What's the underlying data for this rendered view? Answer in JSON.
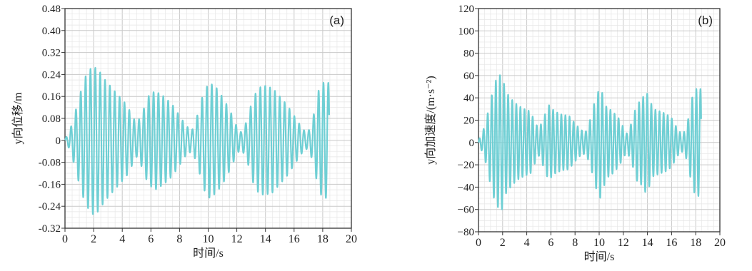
{
  "chart_data": [
    {
      "type": "line",
      "panel_label": "(a)",
      "xlabel": "时间/s",
      "ylabel": "y向位移/m",
      "xlim": [
        0,
        20
      ],
      "ylim": [
        -0.32,
        0.48
      ],
      "x_ticks": [
        0,
        2,
        4,
        6,
        8,
        10,
        12,
        14,
        16,
        18,
        20
      ],
      "x_tick_labels": [
        "0",
        "2",
        "4",
        "6",
        "8",
        "10",
        "12",
        "14",
        "16",
        "18",
        "20"
      ],
      "y_ticks": [
        -0.32,
        -0.24,
        -0.16,
        -0.08,
        0,
        0.08,
        0.16,
        0.24,
        0.32,
        0.4,
        0.48
      ],
      "y_tick_labels": [
        "-0.32",
        "-0.24",
        "-0.16",
        "-0.08",
        "0",
        "0.08",
        "0.16",
        "0.24",
        "0.32",
        "0.40",
        "0.48"
      ],
      "grid": true,
      "line_color": "#6fcfd4",
      "oscillation_frequency_hz": 2.95,
      "duration_s": 18.45,
      "envelope": {
        "t": [
          0,
          0.3,
          0.6,
          1.0,
          1.4,
          1.9,
          2.3,
          2.8,
          3.3,
          3.8,
          4.3,
          4.7,
          5.0,
          5.4,
          5.8,
          6.3,
          6.9,
          7.5,
          8.0,
          8.5,
          8.9,
          9.3,
          9.7,
          10.1,
          10.6,
          11.1,
          11.6,
          12.0,
          12.3,
          12.7,
          13.1,
          13.5,
          13.9,
          14.5,
          15.0,
          15.5,
          16.0,
          16.5,
          16.8,
          17.1,
          17.4,
          17.7,
          18.0,
          18.45
        ],
        "a": [
          0.005,
          0.03,
          0.08,
          0.16,
          0.23,
          0.27,
          0.26,
          0.22,
          0.19,
          0.16,
          0.13,
          0.09,
          0.06,
          0.1,
          0.16,
          0.18,
          0.16,
          0.13,
          0.09,
          0.05,
          0.04,
          0.1,
          0.18,
          0.21,
          0.19,
          0.15,
          0.1,
          0.05,
          0.03,
          0.07,
          0.15,
          0.19,
          0.2,
          0.19,
          0.16,
          0.13,
          0.09,
          0.05,
          0.03,
          0.04,
          0.1,
          0.18,
          0.21,
          0.21
        ]
      }
    },
    {
      "type": "line",
      "panel_label": "(b)",
      "xlabel": "时间/s",
      "ylabel": "y向加速度/(m·s⁻²)",
      "xlim": [
        0,
        20
      ],
      "ylim": [
        -80,
        120
      ],
      "x_ticks": [
        0,
        2,
        4,
        6,
        8,
        10,
        12,
        14,
        16,
        18,
        20
      ],
      "x_tick_labels": [
        "0",
        "2",
        "4",
        "6",
        "8",
        "10",
        "12",
        "14",
        "16",
        "18",
        "20"
      ],
      "y_ticks": [
        -80,
        -60,
        -40,
        -20,
        0,
        20,
        40,
        60,
        80,
        100,
        120
      ],
      "y_tick_labels": [
        "−80",
        "−60",
        "−40",
        "−20",
        "0",
        "20",
        "40",
        "60",
        "80",
        "100",
        "120"
      ],
      "grid": true,
      "line_color": "#6fcfd4",
      "oscillation_frequency_hz": 2.95,
      "duration_s": 18.45,
      "envelope": {
        "t": [
          0,
          0.3,
          0.6,
          1.0,
          1.4,
          1.9,
          2.3,
          2.8,
          3.3,
          3.8,
          4.3,
          4.7,
          5.0,
          5.4,
          5.8,
          6.3,
          6.9,
          7.5,
          8.0,
          8.5,
          8.9,
          9.3,
          9.7,
          10.1,
          10.6,
          11.1,
          11.6,
          12.0,
          12.3,
          12.7,
          13.1,
          13.5,
          13.9,
          14.5,
          15.0,
          15.5,
          16.0,
          16.5,
          16.8,
          17.1,
          17.4,
          17.7,
          18.0,
          18.45
        ],
        "a": [
          2,
          8,
          18,
          38,
          55,
          62,
          45,
          38,
          33,
          30,
          28,
          18,
          12,
          22,
          34,
          28,
          25,
          24,
          17,
          11,
          10,
          22,
          40,
          50,
          32,
          28,
          22,
          14,
          8,
          18,
          34,
          38,
          46,
          30,
          28,
          26,
          22,
          12,
          8,
          10,
          22,
          40,
          48,
          48
        ]
      }
    }
  ]
}
